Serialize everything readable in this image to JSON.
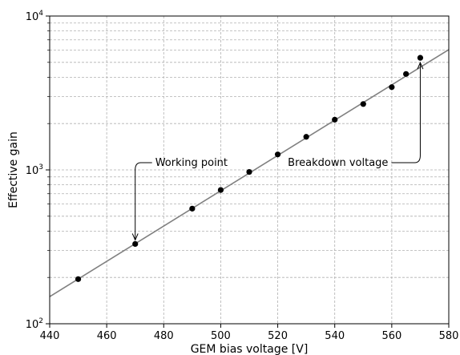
{
  "chart_data": {
    "type": "scatter",
    "xlabel": "GEM bias voltage [V]",
    "ylabel": "Effective gain",
    "xlim": [
      440,
      580
    ],
    "ylim": [
      100,
      10000
    ],
    "yscale": "log",
    "grid": true,
    "x_ticks": [
      440,
      460,
      480,
      500,
      520,
      540,
      560,
      580
    ],
    "x_tick_labels": [
      "440",
      "460",
      "480",
      "500",
      "520",
      "540",
      "560",
      "580"
    ],
    "y_ticks": [
      {
        "value": 100,
        "base": "10",
        "exp": "2"
      },
      {
        "value": 1000,
        "base": "10",
        "exp": "3"
      },
      {
        "value": 10000,
        "base": "10",
        "exp": "4"
      }
    ],
    "series": [
      {
        "kind": "points",
        "color": "#000000",
        "x": [
          450,
          470,
          490,
          500,
          510,
          520,
          530,
          540,
          550,
          560,
          565,
          570
        ],
        "y": [
          195,
          330,
          560,
          740,
          970,
          1260,
          1640,
          2120,
          2680,
          3450,
          4200,
          5350
        ]
      },
      {
        "kind": "fit-line",
        "color": "#808080",
        "x": [
          440,
          580
        ],
        "y": [
          150,
          6050
        ]
      }
    ],
    "annotations": [
      {
        "text": "Working point",
        "x": 470,
        "y": 330
      },
      {
        "text": "Breakdown voltage",
        "x": 570,
        "y": 5350
      }
    ]
  }
}
